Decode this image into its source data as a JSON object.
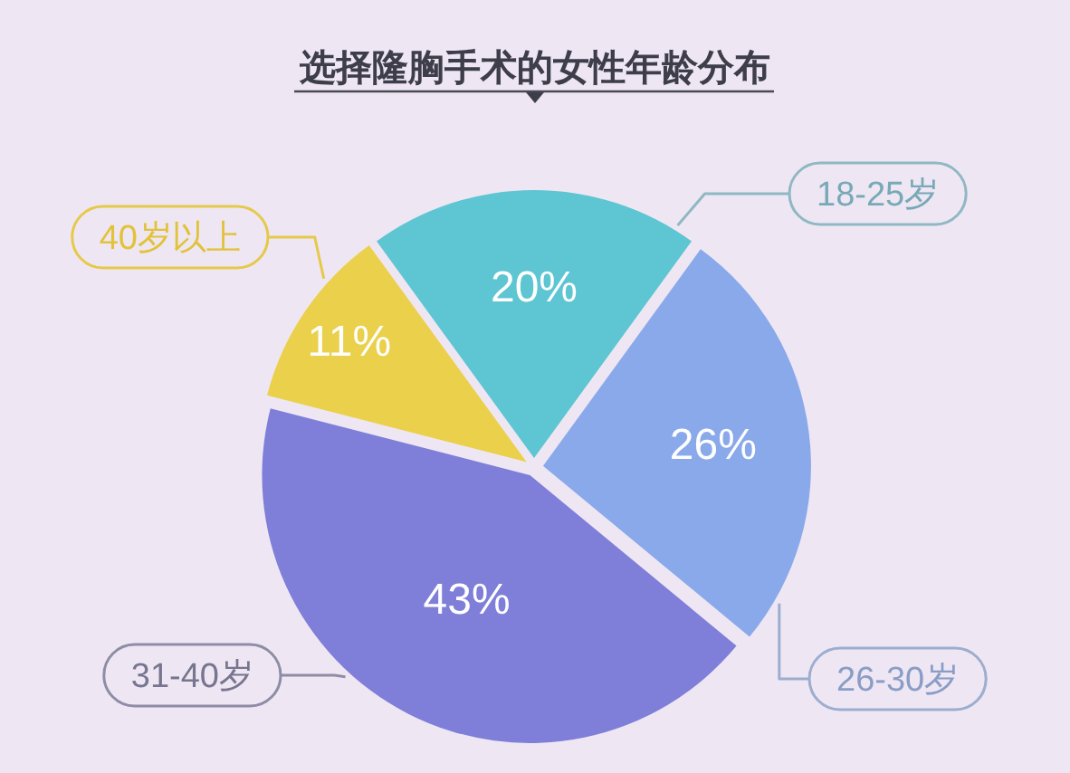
{
  "chart_data": {
    "type": "pie",
    "title": "选择隆胸手术的女性年龄分布",
    "categories": [
      "18-25岁",
      "26-30岁",
      "31-40岁",
      "40岁以上"
    ],
    "values": [
      20,
      26,
      43,
      11
    ],
    "colors": [
      "#5ec5d2",
      "#8aa9ea",
      "#7f7ed9",
      "#ebd04b"
    ],
    "value_labels": [
      "20%",
      "26%",
      "43%",
      "11%"
    ]
  }
}
